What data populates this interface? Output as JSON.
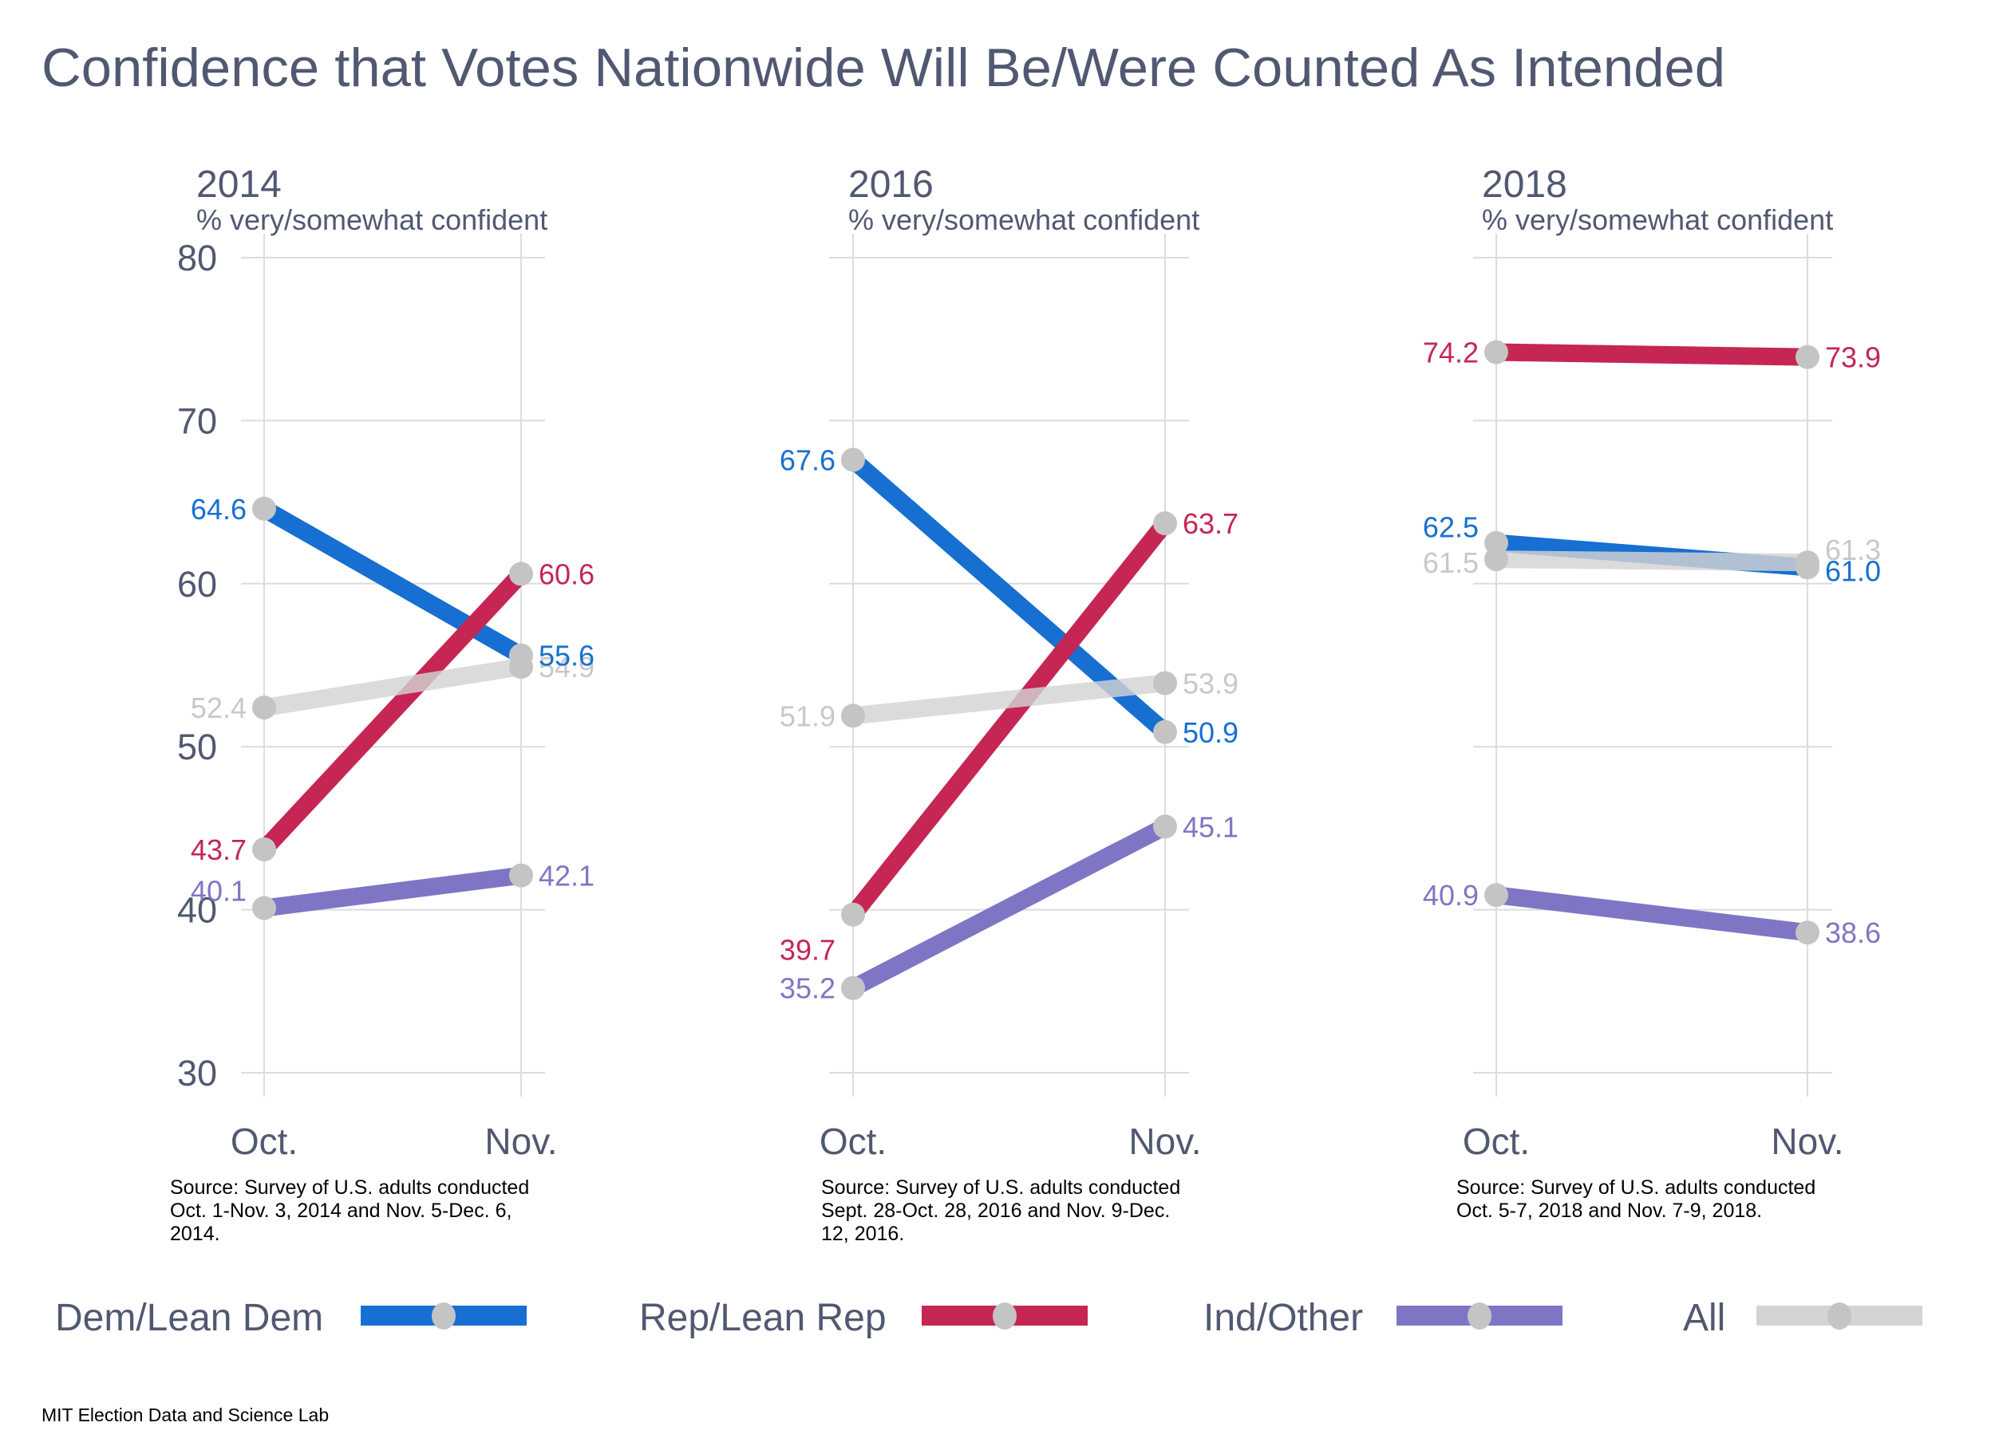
{
  "chart_data": {
    "type": "line",
    "title": "Confidence that Votes Nationwide Will Be/Were Counted As Intended",
    "ylim": [
      30,
      80
    ],
    "yticks": [
      "80",
      "70",
      "60",
      "50",
      "40",
      "30"
    ],
    "ytick_values": [
      80,
      70,
      60,
      50,
      40,
      30
    ],
    "categories": [
      "Oct.",
      "Nov."
    ],
    "grid": true,
    "legend_placement": "bottom",
    "series_meta": [
      {
        "key": "dem",
        "name": "Dem/Lean Dem",
        "color": "#176fd1"
      },
      {
        "key": "rep",
        "name": "Rep/Lean Rep",
        "color": "#c52653"
      },
      {
        "key": "ind",
        "name": "Ind/Other",
        "color": "#7e76c4"
      },
      {
        "key": "all",
        "name": "All",
        "color": "#c8c8c8"
      }
    ],
    "marker_color": "#c4c4c4",
    "panels": [
      {
        "year": "2014",
        "subtitle": "% very/somewhat confident",
        "source": [
          "Source: Survey of U.S. adults conducted",
          "Oct. 1-Nov. 3, 2014 and Nov. 5-Dec. 6,",
          "2014."
        ],
        "series": [
          {
            "key": "dem",
            "values": [
              64.6,
              55.6
            ],
            "labels": [
              "64.6",
              "55.6"
            ]
          },
          {
            "key": "rep",
            "values": [
              43.7,
              60.6
            ],
            "labels": [
              "43.7",
              "60.6"
            ]
          },
          {
            "key": "ind",
            "values": [
              40.1,
              42.1
            ],
            "labels": [
              "40.1",
              "42.1"
            ]
          },
          {
            "key": "all",
            "values": [
              52.4,
              54.9
            ],
            "labels": [
              "52.4",
              "54.9"
            ]
          }
        ]
      },
      {
        "year": "2016",
        "subtitle": "% very/somewhat confident",
        "source": [
          "Source: Survey of U.S. adults conducted",
          "Sept. 28-Oct. 28, 2016 and Nov. 9-Dec.",
          "12, 2016."
        ],
        "series": [
          {
            "key": "dem",
            "values": [
              67.6,
              50.9
            ],
            "labels": [
              "67.6",
              "50.9"
            ]
          },
          {
            "key": "rep",
            "values": [
              39.7,
              63.7
            ],
            "labels": [
              "39.7",
              "63.7"
            ]
          },
          {
            "key": "ind",
            "values": [
              35.2,
              45.1
            ],
            "labels": [
              "35.2",
              "45.1"
            ]
          },
          {
            "key": "all",
            "values": [
              51.9,
              53.9
            ],
            "labels": [
              "51.9",
              "53.9"
            ]
          }
        ]
      },
      {
        "year": "2018",
        "subtitle": "% very/somewhat confident",
        "source": [
          "Source: Survey of U.S. adults conducted",
          "Oct. 5-7, 2018 and Nov. 7-9, 2018."
        ],
        "series": [
          {
            "key": "dem",
            "values": [
              62.5,
              61.0
            ],
            "labels": [
              "62.5",
              "61.0"
            ]
          },
          {
            "key": "rep",
            "values": [
              74.2,
              73.9
            ],
            "labels": [
              "74.2",
              "73.9"
            ]
          },
          {
            "key": "ind",
            "values": [
              40.9,
              38.6
            ],
            "labels": [
              "40.9",
              "38.6"
            ]
          },
          {
            "key": "all",
            "values": [
              61.5,
              61.3
            ],
            "labels": [
              "61.5",
              "61.3"
            ]
          }
        ]
      }
    ]
  },
  "legend": [
    {
      "label": "Dem/Lean Dem",
      "color": "#176fd1"
    },
    {
      "label": "Rep/Lean Rep",
      "color": "#c52653"
    },
    {
      "label": "Ind/Other",
      "color": "#7e76c4"
    },
    {
      "label": "All",
      "color": "#d3d3d3"
    }
  ],
  "credit": "MIT Election Data and Science Lab"
}
